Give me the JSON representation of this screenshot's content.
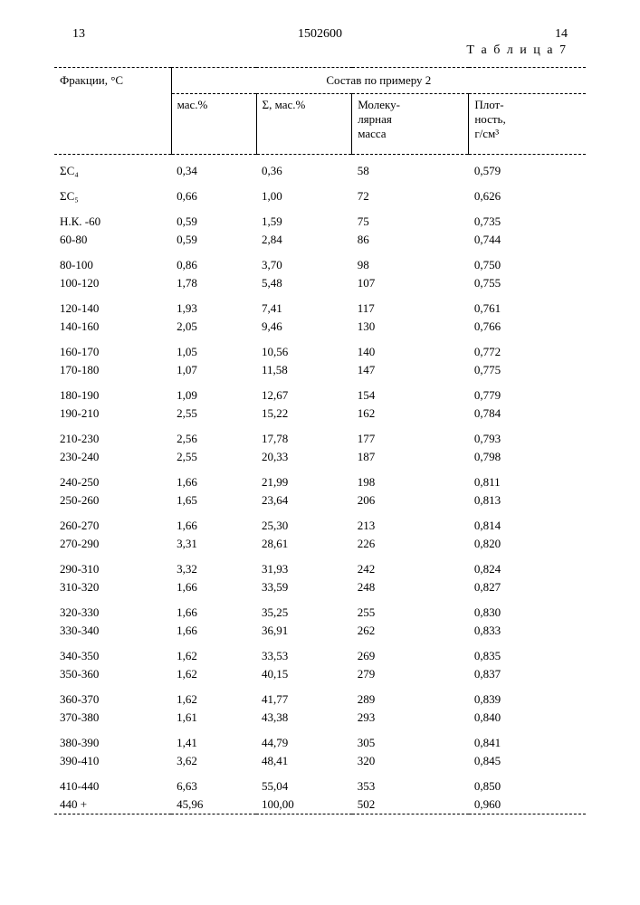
{
  "page_left": "13",
  "doc_num": "1502600",
  "page_right": "14",
  "table_caption": "Т а б л и ц а   7",
  "col1_header": "Фракции, °С",
  "span_header": "Состав по примеру 2",
  "sub_headers": {
    "mass": "мас.%",
    "sum": "Σ, мас.%",
    "molmass": "Молеку-\nлярная\nмасса",
    "density": "Плот-\nность,\nг/см³"
  },
  "rows": [
    {
      "f": "ΣС₄",
      "m": "0,34",
      "s": "0,36",
      "mm": "58",
      "d": "0,579",
      "gap": true
    },
    {
      "f": "ΣС₅",
      "m": "0,66",
      "s": "1,00",
      "mm": "72",
      "d": "0,626",
      "gap": true
    },
    {
      "f": "Н.К. -60",
      "m": "0,59",
      "s": "1,59",
      "mm": "75",
      "d": "0,735",
      "gap": true
    },
    {
      "f": "60-80",
      "m": "0,59",
      "s": "2,84",
      "mm": "86",
      "d": "0,744"
    },
    {
      "f": "80-100",
      "m": "0,86",
      "s": "3,70",
      "mm": "98",
      "d": "0,750",
      "gap": true
    },
    {
      "f": "100-120",
      "m": "1,78",
      "s": "5,48",
      "mm": "107",
      "d": "0,755"
    },
    {
      "f": "120-140",
      "m": "1,93",
      "s": "7,41",
      "mm": "117",
      "d": "0,761",
      "gap": true
    },
    {
      "f": "140-160",
      "m": "2,05",
      "s": "9,46",
      "mm": "130",
      "d": "0,766"
    },
    {
      "f": "160-170",
      "m": "1,05",
      "s": "10,56",
      "mm": "140",
      "d": "0,772",
      "gap": true
    },
    {
      "f": "170-180",
      "m": "1,07",
      "s": "11,58",
      "mm": "147",
      "d": "0,775"
    },
    {
      "f": "180-190",
      "m": "1,09",
      "s": "12,67",
      "mm": "154",
      "d": "0,779",
      "gap": true
    },
    {
      "f": "190-210",
      "m": "2,55",
      "s": "15,22",
      "mm": "162",
      "d": "0,784"
    },
    {
      "f": "210-230",
      "m": "2,56",
      "s": "17,78",
      "mm": "177",
      "d": "0,793",
      "gap": true
    },
    {
      "f": "230-240",
      "m": "2,55",
      "s": "20,33",
      "mm": "187",
      "d": "0,798"
    },
    {
      "f": "240-250",
      "m": "1,66",
      "s": "21,99",
      "mm": "198",
      "d": "0,811",
      "gap": true
    },
    {
      "f": "250-260",
      "m": "1,65",
      "s": "23,64",
      "mm": "206",
      "d": "0,813"
    },
    {
      "f": "260-270",
      "m": "1,66",
      "s": "25,30",
      "mm": "213",
      "d": "0,814",
      "gap": true
    },
    {
      "f": "270-290",
      "m": "3,31",
      "s": "28,61",
      "mm": "226",
      "d": "0,820"
    },
    {
      "f": "290-310",
      "m": "3,32",
      "s": "31,93",
      "mm": "242",
      "d": "0,824",
      "gap": true
    },
    {
      "f": "310-320",
      "m": "1,66",
      "s": "33,59",
      "mm": "248",
      "d": "0,827"
    },
    {
      "f": "320-330",
      "m": "1,66",
      "s": "35,25",
      "mm": "255",
      "d": "0,830",
      "gap": true
    },
    {
      "f": "330-340",
      "m": "1,66",
      "s": "36,91",
      "mm": "262",
      "d": "0,833"
    },
    {
      "f": "340-350",
      "m": "1,62",
      "s": "33,53",
      "mm": "269",
      "d": "0,835",
      "gap": true
    },
    {
      "f": "350-360",
      "m": "1,62",
      "s": "40,15",
      "mm": "279",
      "d": "0,837"
    },
    {
      "f": "360-370",
      "m": "1,62",
      "s": "41,77",
      "mm": "289",
      "d": "0,839",
      "gap": true
    },
    {
      "f": "370-380",
      "m": "1,61",
      "s": "43,38",
      "mm": "293",
      "d": "0,840"
    },
    {
      "f": "380-390",
      "m": "1,41",
      "s": "44,79",
      "mm": "305",
      "d": "0,841",
      "gap": true
    },
    {
      "f": "390-410",
      "m": "3,62",
      "s": "48,41",
      "mm": "320",
      "d": "0,845"
    },
    {
      "f": "410-440",
      "m": "6,63",
      "s": "55,04",
      "mm": "353",
      "d": "0,850",
      "gap": true
    },
    {
      "f": "440 +",
      "m": "45,96",
      "s": "100,00",
      "mm": "502",
      "d": "0,960"
    }
  ]
}
